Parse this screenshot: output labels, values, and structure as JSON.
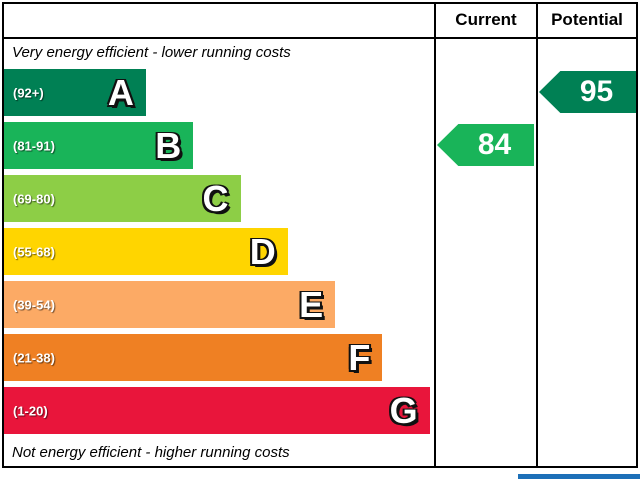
{
  "chart_data": {
    "type": "bar",
    "top_caption": "Very energy efficient - lower running costs",
    "bottom_caption": "Not energy efficient - higher running costs",
    "columns": [
      "Current",
      "Potential"
    ],
    "bands": [
      {
        "letter": "A",
        "range": "(92+)",
        "min": 92,
        "max": 100,
        "color": "#008054",
        "width_pct": 33
      },
      {
        "letter": "B",
        "range": "(81-91)",
        "min": 81,
        "max": 91,
        "color": "#19b459",
        "width_pct": 44
      },
      {
        "letter": "C",
        "range": "(69-80)",
        "min": 69,
        "max": 80,
        "color": "#8dce46",
        "width_pct": 55
      },
      {
        "letter": "D",
        "range": "(55-68)",
        "min": 55,
        "max": 68,
        "color": "#ffd500",
        "width_pct": 66
      },
      {
        "letter": "E",
        "range": "(39-54)",
        "min": 39,
        "max": 54,
        "color": "#fcaa65",
        "width_pct": 77
      },
      {
        "letter": "F",
        "range": "(21-38)",
        "min": 21,
        "max": 38,
        "color": "#ef8023",
        "width_pct": 88
      },
      {
        "letter": "G",
        "range": "(1-20)",
        "min": 1,
        "max": 20,
        "color": "#e9153b",
        "width_pct": 99
      }
    ],
    "current": {
      "value": 84,
      "band": "B",
      "color": "#19b459"
    },
    "potential": {
      "value": 95,
      "band": "A",
      "color": "#008054"
    }
  },
  "accent": {
    "blue": "#1d70b8"
  }
}
